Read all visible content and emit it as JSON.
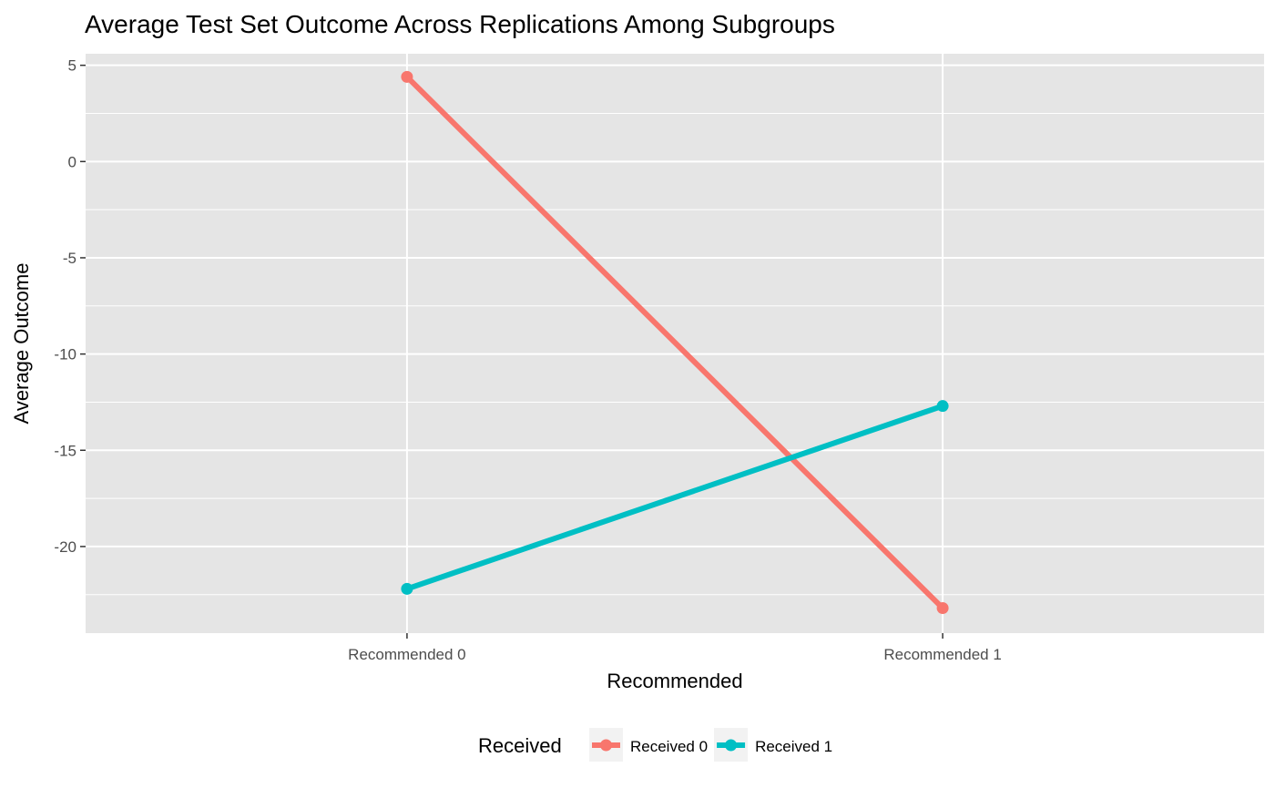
{
  "chart_data": {
    "type": "line",
    "title": "Average Test Set Outcome Across Replications Among Subgroups",
    "xlabel": "Recommended",
    "ylabel": "Average Outcome",
    "categories": [
      "Recommended 0",
      "Recommended 1"
    ],
    "series": [
      {
        "name": "Received 0",
        "color": "#F8766D",
        "values": [
          4.4,
          -23.2
        ]
      },
      {
        "name": "Received 1",
        "color": "#00BFC4",
        "values": [
          -22.2,
          -12.7
        ]
      }
    ],
    "ylim": [
      -24.5,
      5.6
    ],
    "yticks": [
      5,
      0,
      -5,
      -10,
      -15,
      -20
    ],
    "ytick_labels": [
      "5",
      "0",
      "-5",
      "-10",
      "-15",
      "-20"
    ],
    "grid": true,
    "panel_background": "#E5E5E5",
    "legend": {
      "title": "Received",
      "position": "bottom"
    }
  }
}
